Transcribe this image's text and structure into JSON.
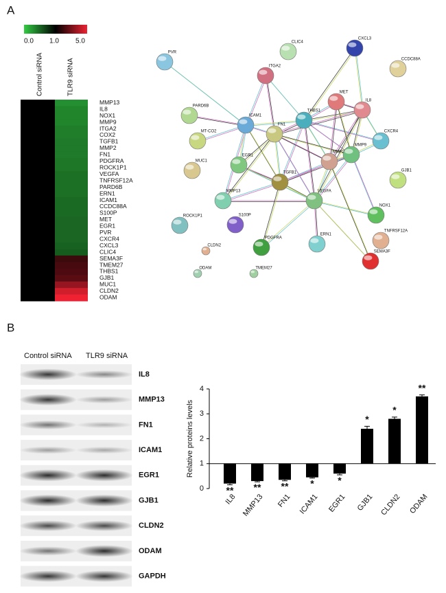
{
  "panel_labels": [
    "A",
    "B"
  ],
  "heatmap": {
    "colorbar_labels": [
      "0.0",
      "1.0",
      "5.0"
    ],
    "columns": [
      "Control siRNA",
      "TLR9 siRNA"
    ],
    "genes": [
      "MMP13",
      "IL8",
      "NOX1",
      "MMP9",
      "ITGA2",
      "COX2",
      "TGFB1",
      "MMP2",
      "FN1",
      "PDGFRA",
      "ROCK1P1",
      "VEGFA",
      "TNFRSF12A",
      "PARD6B",
      "ERN1",
      "ICAM1",
      "CCDC88A",
      "S100P",
      "MET",
      "EGR1",
      "PVR",
      "CXCR4",
      "CXCL3",
      "CLIC4",
      "SEMA3F",
      "TMEM27",
      "THBS1",
      "GJB1",
      "MUC1",
      "CLDN2",
      "ODAM"
    ],
    "control_values": [
      1,
      1,
      1,
      1,
      1,
      1,
      1,
      1,
      1,
      1,
      1,
      1,
      1,
      1,
      1,
      1,
      1,
      1,
      1,
      1,
      1,
      1,
      1,
      1,
      1,
      1,
      1,
      1,
      1,
      1,
      1
    ],
    "tlr9_values": [
      0.3,
      0.35,
      0.35,
      0.35,
      0.38,
      0.38,
      0.4,
      0.4,
      0.4,
      0.42,
      0.42,
      0.45,
      0.45,
      0.45,
      0.45,
      0.48,
      0.48,
      0.48,
      0.5,
      0.5,
      0.5,
      0.5,
      0.52,
      0.55,
      2.0,
      2.2,
      2.3,
      2.5,
      3.5,
      4.5,
      5.0
    ]
  },
  "network": {
    "nodes": [
      "PVR",
      "CLIC4",
      "CXCL3",
      "CCDC88A",
      "ITGA2",
      "MET",
      "IL8",
      "THBS1",
      "ICAM1",
      "FN1",
      "CXCR4",
      "PARD6B",
      "MT-CO2",
      "MMP2",
      "MMP9",
      "MUC1",
      "EGR1",
      "TGFB1",
      "VEGFA",
      "GJB1",
      "MMP13",
      "NOX1",
      "ROCK1P1",
      "S100P",
      "TNFRSF12A",
      "CLDN2",
      "PDGFRA",
      "ERN1",
      "SEMA3F",
      "ODAM",
      "TMEM27"
    ]
  },
  "blot": {
    "columns": [
      "Control siRNA",
      "TLR9 siRNA"
    ],
    "rows": [
      "IL8",
      "MMP13",
      "FN1",
      "ICAM1",
      "EGR1",
      "GJB1",
      "CLDN2",
      "ODAM",
      "GAPDH"
    ]
  },
  "chart_data": {
    "type": "bar",
    "ylabel": "Relative proteins levels",
    "categories": [
      "IL8",
      "MMP13",
      "FN1",
      "ICAM1",
      "EGR1",
      "GJB1",
      "CLDN2",
      "ODAM"
    ],
    "values": [
      0.2,
      0.3,
      0.35,
      0.45,
      0.6,
      2.4,
      2.8,
      3.7
    ],
    "errors": [
      0.05,
      0.03,
      0.04,
      0.03,
      0.05,
      0.1,
      0.07,
      0.06
    ],
    "annotations": [
      "**",
      "**",
      "**",
      "*",
      "*",
      "*",
      "*",
      "**"
    ],
    "baseline": 1,
    "color": "#000000",
    "ylim": [
      0,
      4
    ],
    "yticks": [
      0,
      1,
      2,
      3,
      4
    ]
  }
}
